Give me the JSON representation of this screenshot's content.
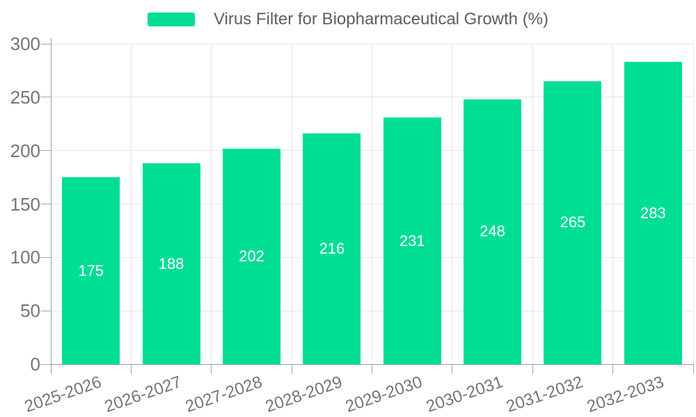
{
  "chart_data": {
    "type": "bar",
    "title": "Virus Filter for Biopharmaceutical Growth (%)",
    "categories": [
      "2025-2026",
      "2026-2027",
      "2027-2028",
      "2028-2029",
      "2029-2030",
      "2030-2031",
      "2031-2032",
      "2032-2033"
    ],
    "values": [
      175,
      188,
      202,
      216,
      231,
      248,
      265,
      283
    ],
    "xlabel": "",
    "ylabel": "",
    "ylim": [
      0,
      300
    ],
    "yticks": [
      0,
      50,
      100,
      150,
      200,
      250,
      300
    ],
    "grid": true,
    "legend_position": "top",
    "bar_color": "#00de95",
    "value_label_color": "#ffffff",
    "value_label_position": "inside-center",
    "axis_color": "#999999",
    "gridline_color": "#e4e4e4",
    "axis_label_color": "#757575",
    "legend_text_color": "#5d5d5d",
    "background_color": "#ffffff"
  }
}
